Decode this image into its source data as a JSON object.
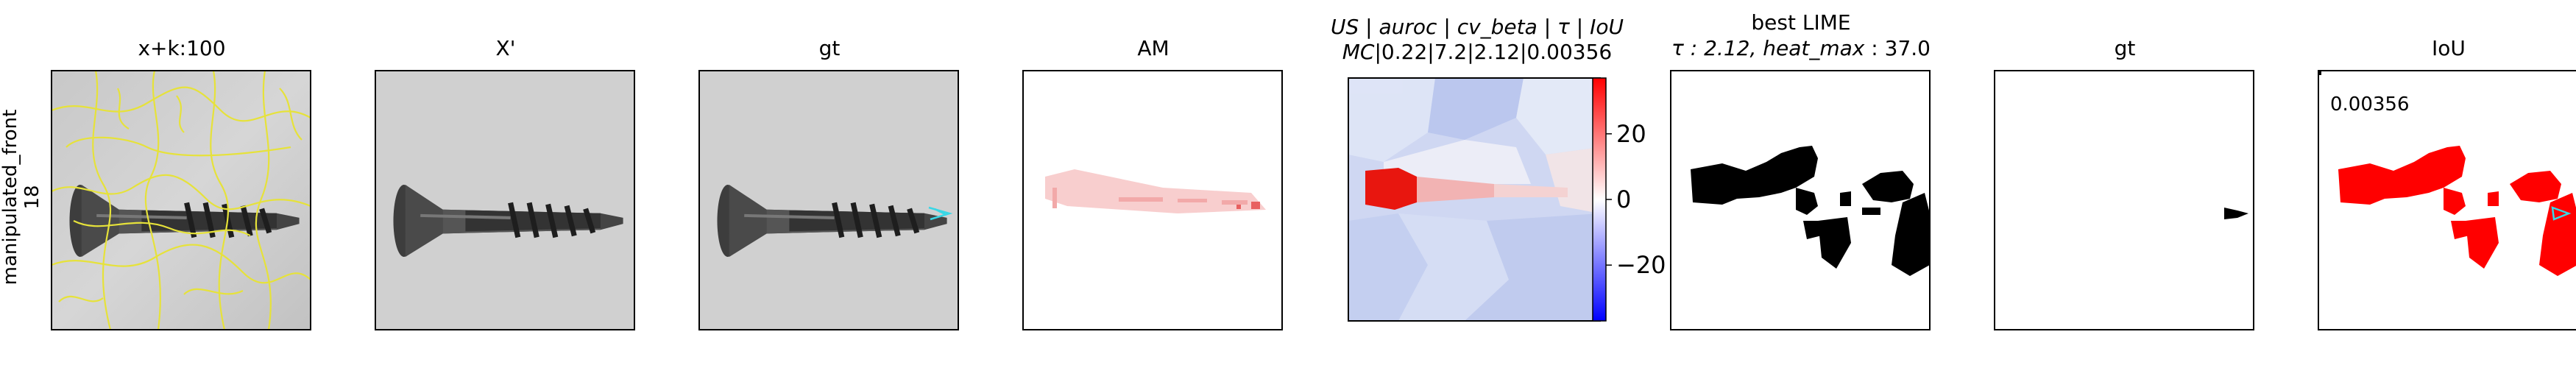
{
  "row_label": [
    "manipulated_front",
    "18"
  ],
  "panels": [
    {
      "title": "x+k:100"
    },
    {
      "title": "X'"
    },
    {
      "title": "gt"
    },
    {
      "title": "AM"
    },
    {
      "title_line1_parts": [
        "US",
        "auroc",
        "cv_beta",
        "τ",
        "IoU"
      ],
      "title_line1_sep": " | ",
      "title_line2_prefix": "MC",
      "title_line2": "|0.22|7.2|2.12|0.00356"
    },
    {
      "title_line1": "best LIME",
      "title_line2_math1": "τ : 2.12, ",
      "title_line2_math2": "heat_max",
      "title_line2_tail": " : 37.0"
    },
    {
      "title": "gt"
    },
    {
      "title": "IoU",
      "annotation": "0.00356"
    }
  ],
  "colorbar": {
    "ticks": [
      "20",
      "0",
      "−20"
    ],
    "tick_values": [
      20,
      0,
      -20
    ],
    "range": [
      -37,
      37
    ],
    "colors": {
      "low": "#0000ff",
      "mid": "#ffffff",
      "high": "#ff0000"
    }
  },
  "colors": {
    "segmentation": "#e6e23a",
    "gt_marker": "#39d7e6",
    "mask_fill": "#000000",
    "iou_fill": "#ff0000",
    "heat_red": "#e8160f"
  }
}
